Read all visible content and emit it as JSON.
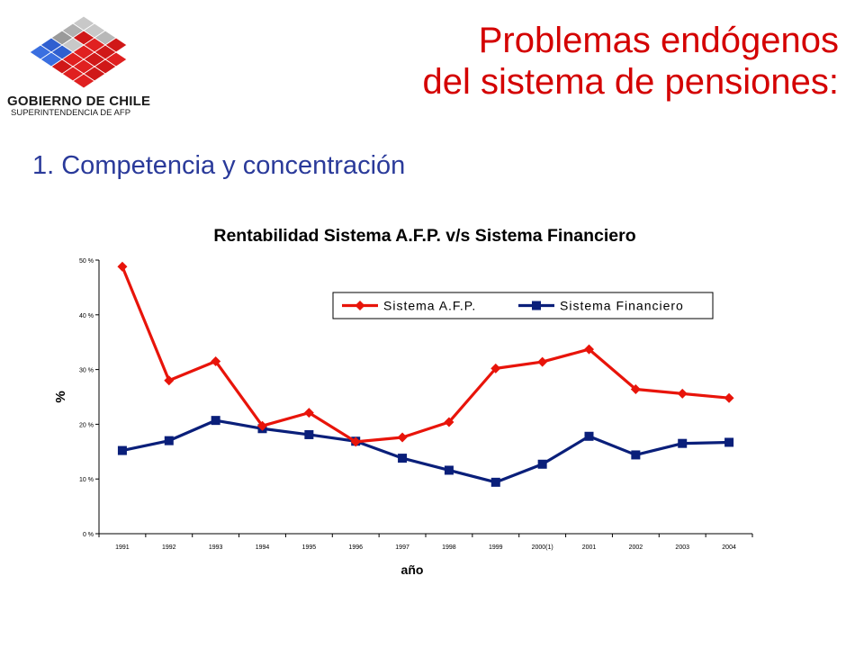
{
  "header": {
    "logo_title": "GOBIERNO DE CHILE",
    "logo_subtitle": "SUPERINTENDENCIA DE AFP",
    "title_line1": "Problemas endógenos",
    "title_line2": "del sistema de pensiones:",
    "subtitle": "1. Competencia y concentración"
  },
  "colors": {
    "title": "#d40000",
    "subtitle": "#2a3a9a",
    "afp_series": "#e8140a",
    "financiero_series": "#0a1f7a"
  },
  "chart_data": {
    "type": "line",
    "title": "Rentabilidad Sistema A.F.P. v/s Sistema Financiero",
    "xlabel": "año",
    "ylabel": "%",
    "categories": [
      "1991",
      "1992",
      "1993",
      "1994",
      "1995",
      "1996",
      "1997",
      "1998",
      "1999",
      "2000(1)",
      "2001",
      "2002",
      "2003",
      "2004"
    ],
    "ylim": [
      0,
      50
    ],
    "yticks": [
      0,
      10,
      20,
      30,
      40,
      50
    ],
    "ytick_labels": [
      "0 %",
      "10 %",
      "20 %",
      "30 %",
      "40 %",
      "50 %"
    ],
    "grid": false,
    "legend_position": "top-right",
    "series": [
      {
        "name": "Sistema A.F.P.",
        "marker": "diamond",
        "color": "#e8140a",
        "values": [
          48.8,
          28.0,
          31.5,
          19.7,
          22.1,
          16.8,
          17.6,
          20.4,
          30.2,
          31.4,
          33.7,
          26.4,
          25.6,
          24.8
        ]
      },
      {
        "name": "Sistema Financiero",
        "marker": "square",
        "color": "#0a1f7a",
        "values": [
          15.2,
          17.0,
          20.7,
          19.2,
          18.1,
          16.9,
          13.8,
          11.6,
          9.4,
          12.7,
          17.8,
          14.4,
          16.5,
          16.7
        ]
      }
    ]
  }
}
